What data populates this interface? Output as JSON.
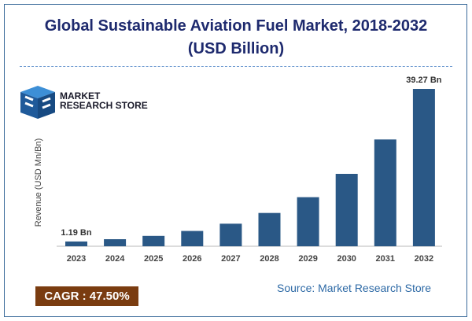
{
  "title_line1": "Global Sustainable Aviation Fuel Market, 2018-2032",
  "title_line2": "(USD Billion)",
  "logo": {
    "line1": "MARKET",
    "line2": "RESEARCH STORE"
  },
  "cagr": "CAGR : 47.50%",
  "source": "Source:  Market  Research Store",
  "colors": {
    "bar": "#2a5886",
    "title": "#1e2a6e",
    "cagr_bg": "#7a3c10",
    "source": "#2e6aa6"
  },
  "chart_data": {
    "type": "bar",
    "title": "Global Sustainable Aviation Fuel Market, 2018-2032 (USD Billion)",
    "xlabel": "",
    "ylabel": "Revenue (USD Mn/Bn)",
    "categories": [
      "2023",
      "2024",
      "2025",
      "2026",
      "2027",
      "2028",
      "2029",
      "2030",
      "2031",
      "2032"
    ],
    "values": [
      1.19,
      1.76,
      2.59,
      3.82,
      5.63,
      8.31,
      12.25,
      18.07,
      26.65,
      39.27
    ],
    "data_labels": {
      "0": "1.19 Bn",
      "9": "39.27 Bn"
    },
    "ylim": [
      0,
      39.27
    ],
    "grid": false
  }
}
